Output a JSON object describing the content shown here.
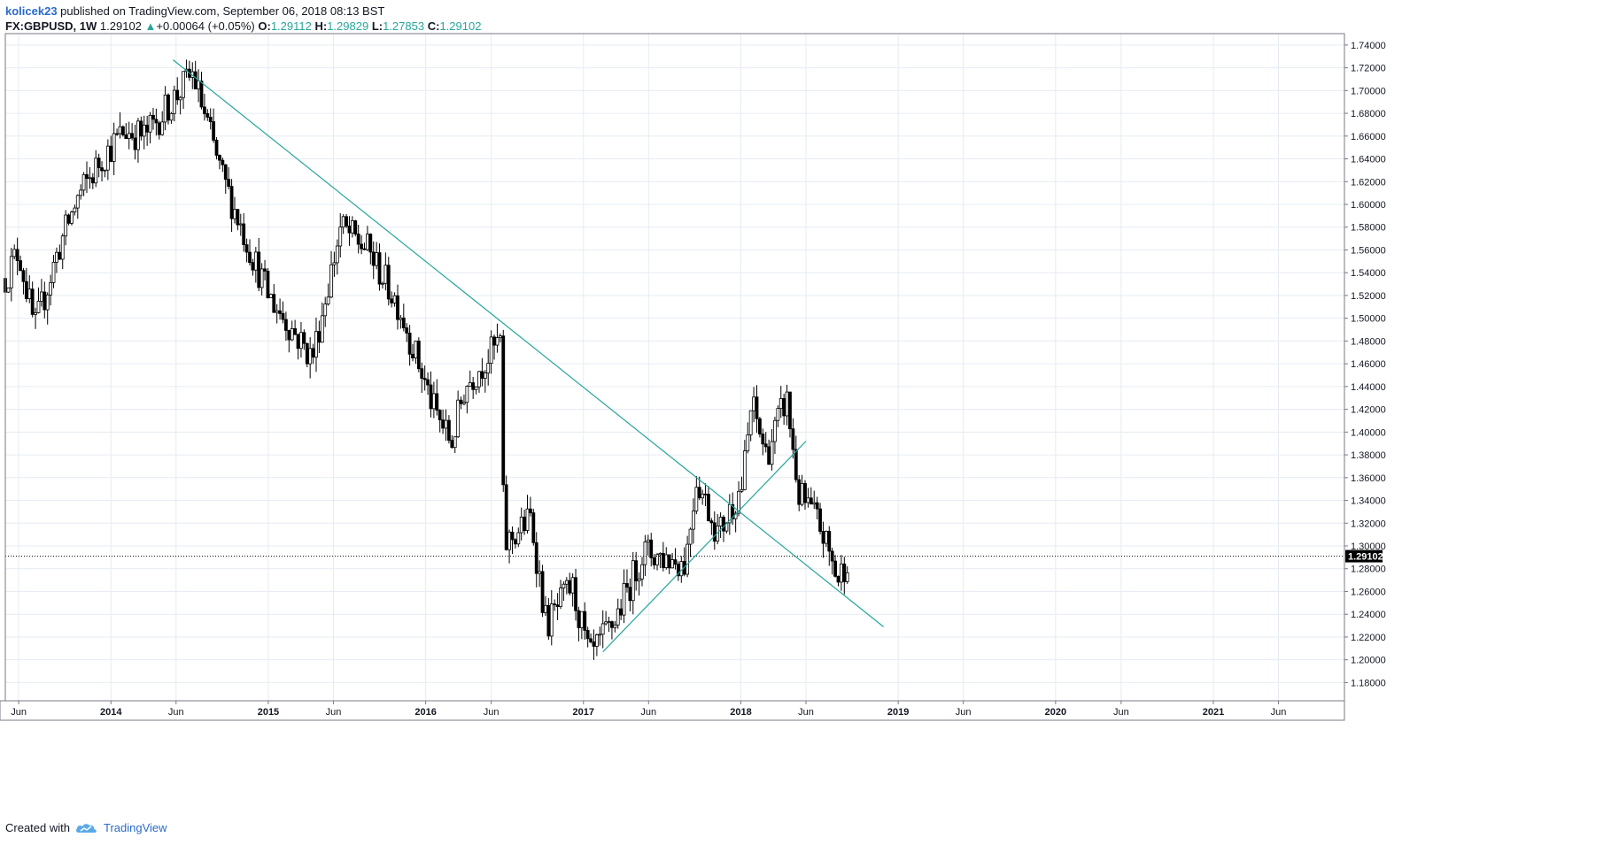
{
  "header": {
    "author": "kolicek23",
    "published": " published on TradingView.com, September 06, 2018 08:13 BST",
    "symbol": "FX:GBPUSD, 1W",
    "last": "1.29102",
    "change_arrow": "▲",
    "change": "+0.00064 (+0.05%)",
    "o_label": "O:",
    "o_value": "1.29112",
    "h_label": "H:",
    "h_value": "1.29829",
    "l_label": "L:",
    "l_value": "1.27853",
    "c_label": "C:",
    "c_value": "1.29102"
  },
  "footer": {
    "created_with": "Created with",
    "brand": "TradingView",
    "logo_icon": "tradingview-cloud-icon"
  },
  "colors": {
    "trendline": "#26a69a",
    "candle": "#000000",
    "grid": "#e6ecf2",
    "price_label_bg": "#000000"
  },
  "chart_data": {
    "type": "candlestick",
    "timeframe": "weekly",
    "y_ticks": [
      "1.74000",
      "1.72000",
      "1.70000",
      "1.68000",
      "1.66000",
      "1.64000",
      "1.62000",
      "1.60000",
      "1.58000",
      "1.56000",
      "1.54000",
      "1.52000",
      "1.50000",
      "1.48000",
      "1.46000",
      "1.44000",
      "1.42000",
      "1.40000",
      "1.38000",
      "1.36000",
      "1.34000",
      "1.32000",
      "1.30000",
      "1.28000",
      "1.26000",
      "1.24000",
      "1.22000",
      "1.20000",
      "1.18000"
    ],
    "ylim": [
      1.164,
      1.75
    ],
    "x_range": [
      "2013-05-01",
      "2021-11-01"
    ],
    "x_ticks": [
      {
        "label": "Jun",
        "date": "2013-06-01",
        "bold": false
      },
      {
        "label": "2014",
        "date": "2014-01-01",
        "bold": true
      },
      {
        "label": "Jun",
        "date": "2014-06-01",
        "bold": false
      },
      {
        "label": "2015",
        "date": "2015-01-01",
        "bold": true
      },
      {
        "label": "Jun",
        "date": "2015-06-01",
        "bold": false
      },
      {
        "label": "2016",
        "date": "2016-01-01",
        "bold": true
      },
      {
        "label": "Jun",
        "date": "2016-06-01",
        "bold": false
      },
      {
        "label": "2017",
        "date": "2017-01-01",
        "bold": true
      },
      {
        "label": "Jun",
        "date": "2017-06-01",
        "bold": false
      },
      {
        "label": "2018",
        "date": "2018-01-01",
        "bold": true
      },
      {
        "label": "Jun",
        "date": "2018-06-01",
        "bold": false
      },
      {
        "label": "2019",
        "date": "2019-01-01",
        "bold": true
      },
      {
        "label": "Jun",
        "date": "2019-06-01",
        "bold": false
      },
      {
        "label": "2020",
        "date": "2020-01-01",
        "bold": true
      },
      {
        "label": "Jun",
        "date": "2020-06-01",
        "bold": false
      },
      {
        "label": "2021",
        "date": "2021-01-01",
        "bold": true
      },
      {
        "label": "Jun",
        "date": "2021-06-01",
        "bold": false
      }
    ],
    "last_price": 1.29102,
    "last_price_label": "1.29102",
    "price_path": [
      {
        "date": "2013-05-01",
        "price": 1.535
      },
      {
        "date": "2013-06-01",
        "price": 1.56
      },
      {
        "date": "2013-07-08",
        "price": 1.49
      },
      {
        "date": "2013-09-01",
        "price": 1.56
      },
      {
        "date": "2013-10-15",
        "price": 1.605
      },
      {
        "date": "2013-12-10",
        "price": 1.64
      },
      {
        "date": "2014-02-01",
        "price": 1.665
      },
      {
        "date": "2014-03-20",
        "price": 1.66
      },
      {
        "date": "2014-05-01",
        "price": 1.68
      },
      {
        "date": "2014-07-10",
        "price": 1.715
      },
      {
        "date": "2014-09-15",
        "price": 1.625
      },
      {
        "date": "2014-11-15",
        "price": 1.565
      },
      {
        "date": "2015-01-01",
        "price": 1.52
      },
      {
        "date": "2015-04-13",
        "price": 1.465
      },
      {
        "date": "2015-06-18",
        "price": 1.58
      },
      {
        "date": "2015-08-20",
        "price": 1.56
      },
      {
        "date": "2015-11-01",
        "price": 1.51
      },
      {
        "date": "2016-01-20",
        "price": 1.42
      },
      {
        "date": "2016-03-01",
        "price": 1.39
      },
      {
        "date": "2016-04-01",
        "price": 1.44
      },
      {
        "date": "2016-06-22",
        "price": 1.48
      },
      {
        "date": "2016-07-01",
        "price": 1.3
      },
      {
        "date": "2016-09-01",
        "price": 1.325
      },
      {
        "date": "2016-10-07",
        "price": 1.23
      },
      {
        "date": "2016-12-05",
        "price": 1.265
      },
      {
        "date": "2017-01-16",
        "price": 1.2
      },
      {
        "date": "2017-03-15",
        "price": 1.235
      },
      {
        "date": "2017-05-20",
        "price": 1.295
      },
      {
        "date": "2017-08-25",
        "price": 1.285
      },
      {
        "date": "2017-09-20",
        "price": 1.36
      },
      {
        "date": "2017-11-10",
        "price": 1.31
      },
      {
        "date": "2018-01-05",
        "price": 1.355
      },
      {
        "date": "2018-01-26",
        "price": 1.425
      },
      {
        "date": "2018-03-01",
        "price": 1.38
      },
      {
        "date": "2018-04-17",
        "price": 1.43
      },
      {
        "date": "2018-05-15",
        "price": 1.345
      },
      {
        "date": "2018-07-01",
        "price": 1.32
      },
      {
        "date": "2018-08-15",
        "price": 1.27
      },
      {
        "date": "2018-09-06",
        "price": 1.291
      }
    ],
    "trendlines": [
      {
        "name": "",
        "from": {
          "date": "2014-05-25",
          "price": 1.727
        },
        "to": {
          "date": "2018-11-28",
          "price": 1.229
        }
      },
      {
        "name": "",
        "from": {
          "date": "2017-02-15",
          "price": 1.207
        },
        "to": {
          "date": "2018-06-01",
          "price": 1.392
        }
      }
    ],
    "grid": true,
    "legend": "none"
  }
}
